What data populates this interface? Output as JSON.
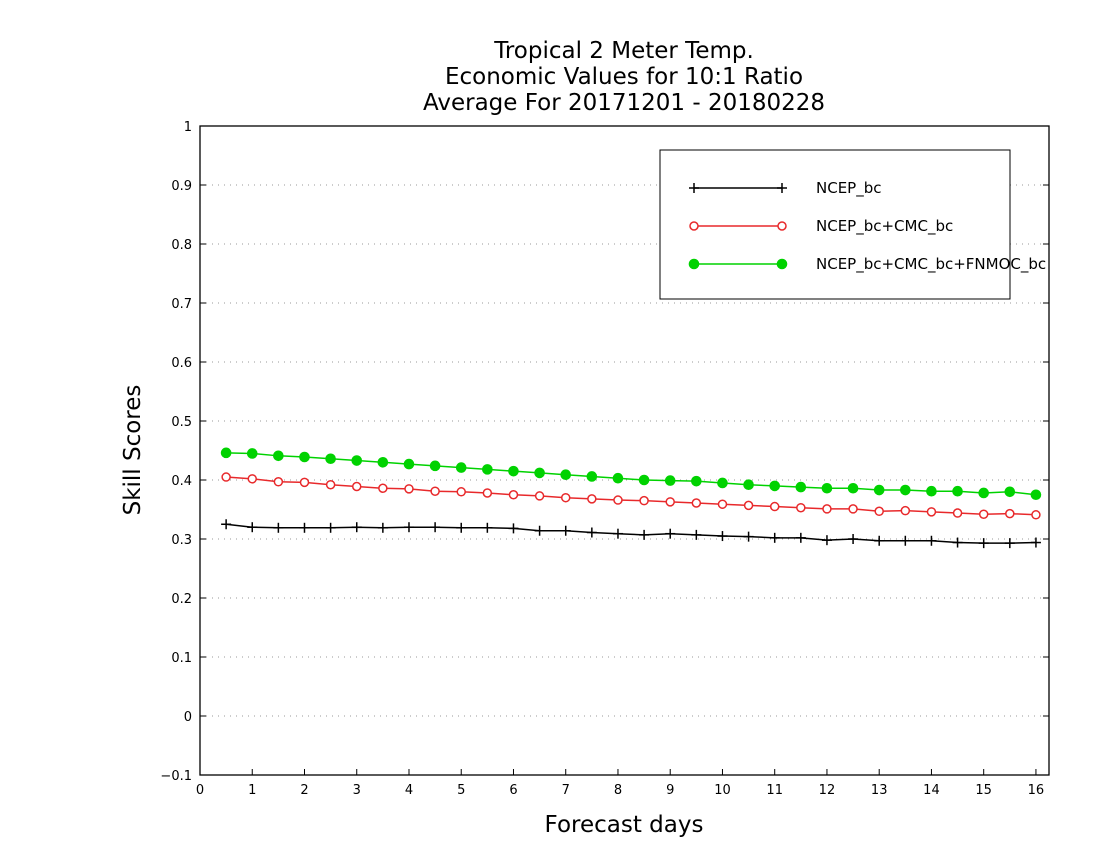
{
  "chart_data": {
    "type": "line",
    "title_lines": [
      "Tropical 2 Meter Temp.",
      "Economic Values for 10:1 Ratio",
      "Average For 20171201 - 20180228"
    ],
    "xlabel": "Forecast days",
    "ylabel": "Skill Scores",
    "xlim": [
      0,
      16.25
    ],
    "ylim": [
      -0.1,
      1
    ],
    "x_ticks": [
      "0",
      "1",
      "2",
      "3",
      "4",
      "5",
      "6",
      "7",
      "8",
      "9",
      "10",
      "11",
      "12",
      "13",
      "14",
      "15",
      "16"
    ],
    "y_ticks": [
      "−0.1",
      "0",
      "0.1",
      "0.2",
      "0.3",
      "0.4",
      "0.5",
      "0.6",
      "0.7",
      "0.8",
      "0.9",
      "1"
    ],
    "grid": "horizontal dotted",
    "legend_position": "top-right",
    "x": [
      0.5,
      1,
      1.5,
      2,
      2.5,
      3,
      3.5,
      4,
      4.5,
      5,
      5.5,
      6,
      6.5,
      7,
      7.5,
      8,
      8.5,
      9,
      9.5,
      10,
      10.5,
      11,
      11.5,
      12,
      12.5,
      13,
      13.5,
      14,
      14.5,
      15,
      15.5,
      16
    ],
    "series": [
      {
        "name": "NCEP_bc",
        "color": "#000000",
        "marker": "plus",
        "values": [
          0.325,
          0.32,
          0.319,
          0.319,
          0.319,
          0.32,
          0.319,
          0.32,
          0.32,
          0.319,
          0.319,
          0.318,
          0.314,
          0.314,
          0.311,
          0.309,
          0.307,
          0.309,
          0.307,
          0.305,
          0.304,
          0.302,
          0.302,
          0.298,
          0.3,
          0.297,
          0.297,
          0.297,
          0.294,
          0.293,
          0.293,
          0.294
        ]
      },
      {
        "name": "NCEP_bc+CMC_bc",
        "color": "#e8292b",
        "marker": "open-circle",
        "values": [
          0.405,
          0.402,
          0.397,
          0.396,
          0.392,
          0.389,
          0.386,
          0.385,
          0.381,
          0.38,
          0.378,
          0.375,
          0.373,
          0.37,
          0.368,
          0.366,
          0.365,
          0.363,
          0.361,
          0.359,
          0.357,
          0.355,
          0.353,
          0.351,
          0.351,
          0.347,
          0.348,
          0.346,
          0.344,
          0.342,
          0.343,
          0.341
        ]
      },
      {
        "name": "NCEP_bc+CMC_bc+FNMOC_bc",
        "color": "#00d200",
        "marker": "filled-circle",
        "values": [
          0.446,
          0.445,
          0.441,
          0.439,
          0.436,
          0.433,
          0.43,
          0.427,
          0.424,
          0.421,
          0.418,
          0.415,
          0.412,
          0.409,
          0.406,
          0.403,
          0.4,
          0.399,
          0.398,
          0.395,
          0.392,
          0.39,
          0.388,
          0.386,
          0.386,
          0.383,
          0.383,
          0.381,
          0.381,
          0.378,
          0.38,
          0.375
        ]
      }
    ]
  }
}
